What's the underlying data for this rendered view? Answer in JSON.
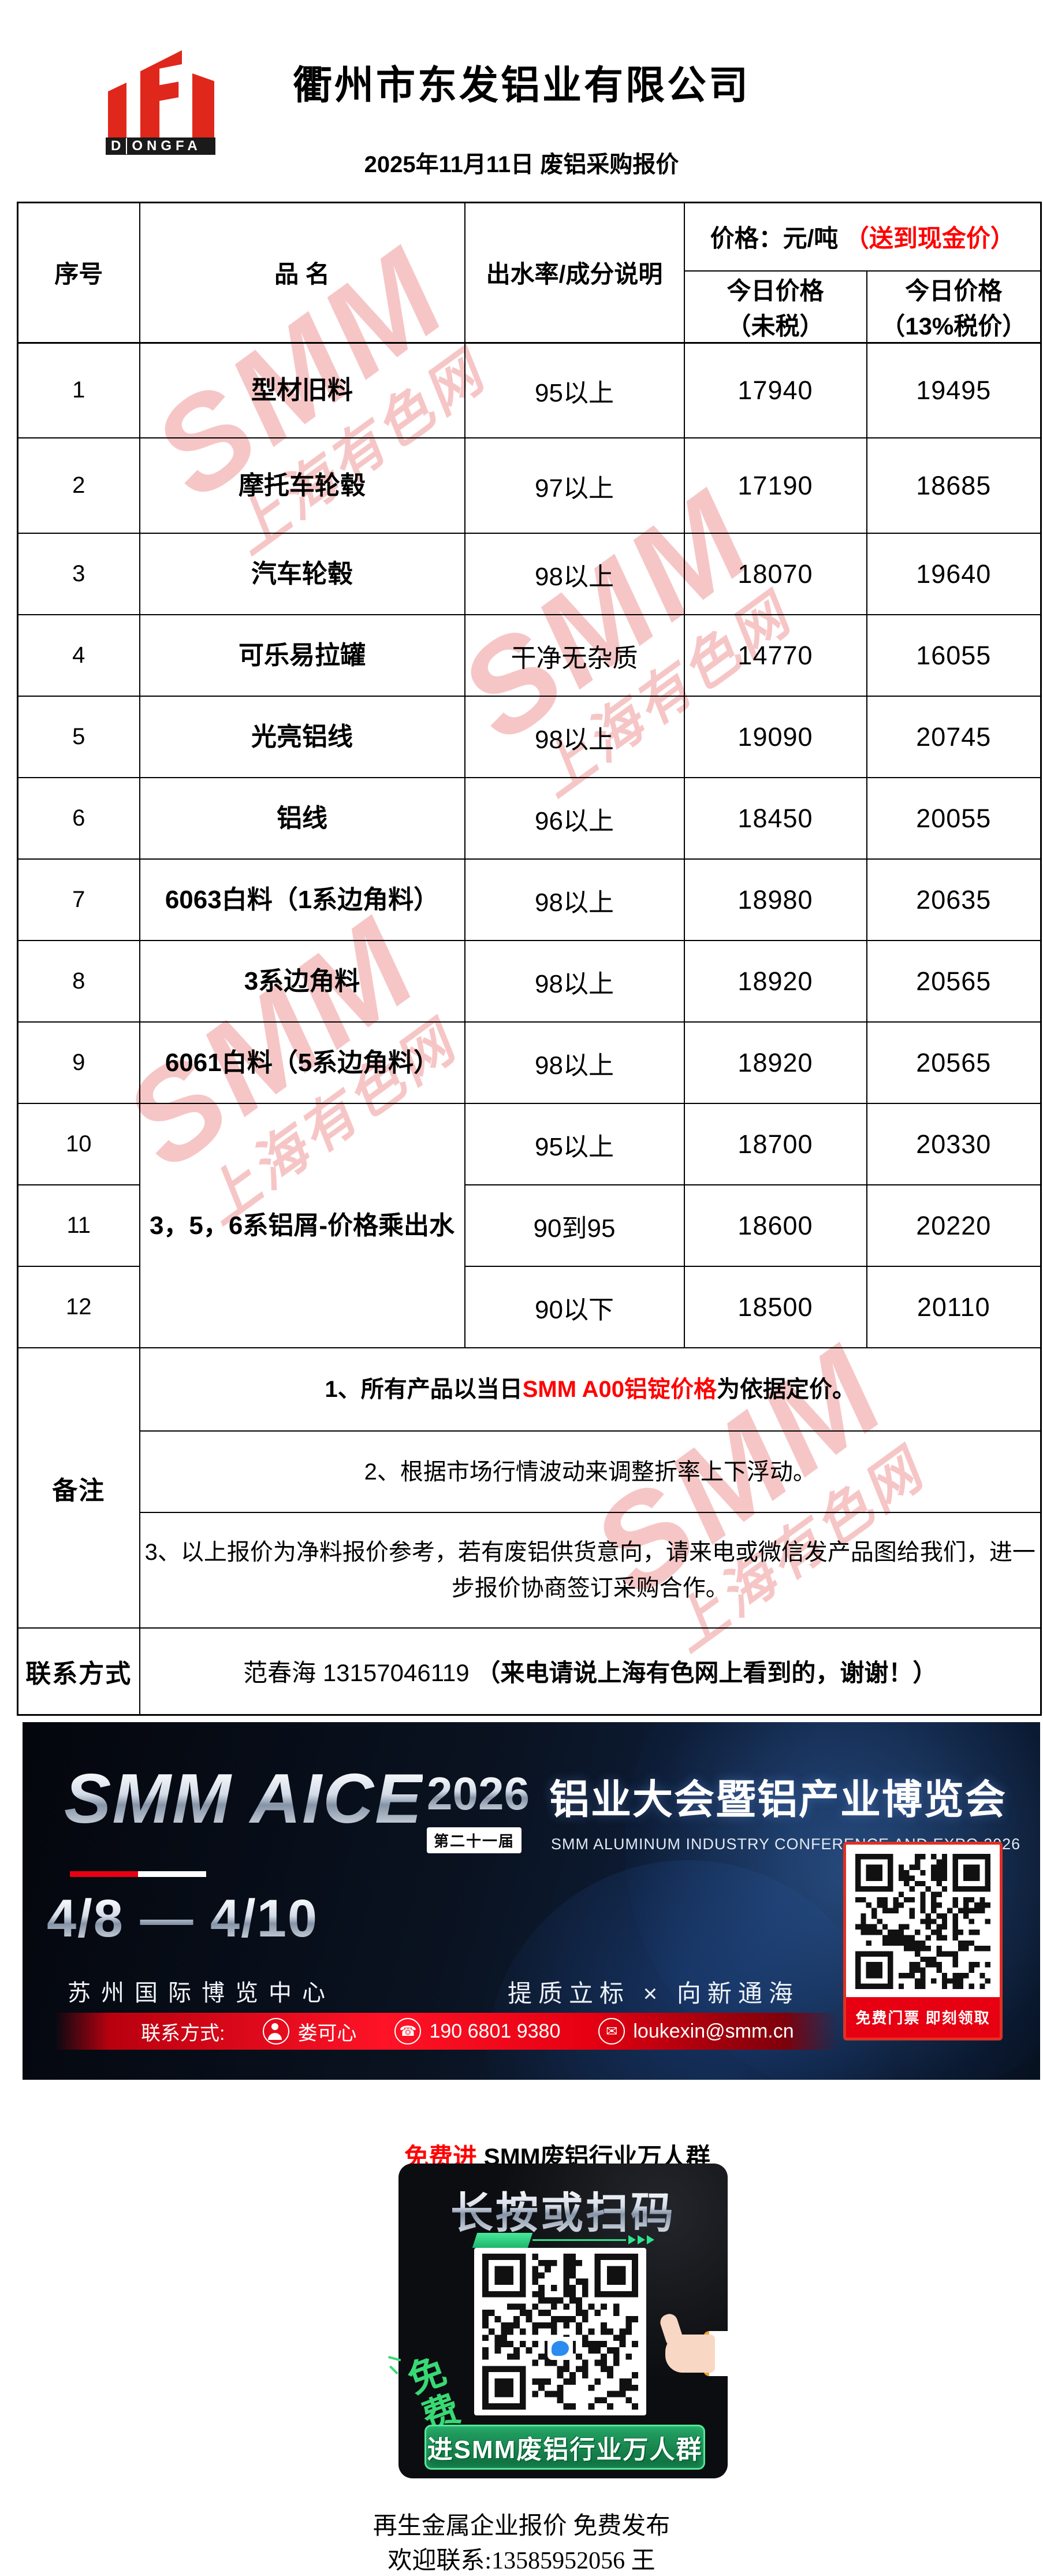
{
  "header": {
    "company": "衢州市东发铝业有限公司",
    "date_line": "2025年11月11日 废铝采购报价",
    "logo": {
      "d": "D",
      "rest": "ONGFA"
    }
  },
  "watermark": {
    "line1": "SMM",
    "line2": "上海有色网"
  },
  "table": {
    "headers": {
      "serial": "序号",
      "name": "品  名",
      "spec": "出水率/成分说明",
      "price_title": "价格：元/吨",
      "price_title_red": "（送到现金价）",
      "today_price": "今日价格",
      "untaxed": "（未税）",
      "taxed": "（13%税价）"
    },
    "rows": [
      {
        "no": "1",
        "name": "型材旧料",
        "spec": "95以上",
        "untaxed": "17940",
        "taxed": "19495"
      },
      {
        "no": "2",
        "name": "摩托车轮毂",
        "spec": "97以上",
        "untaxed": "17190",
        "taxed": "18685"
      },
      {
        "no": "3",
        "name": "汽车轮毂",
        "spec": "98以上",
        "untaxed": "18070",
        "taxed": "19640"
      },
      {
        "no": "4",
        "name": "可乐易拉罐",
        "spec": "干净无杂质",
        "untaxed": "14770",
        "taxed": "16055"
      },
      {
        "no": "5",
        "name": "光亮铝线",
        "spec": "98以上",
        "untaxed": "19090",
        "taxed": "20745"
      },
      {
        "no": "6",
        "name": "铝线",
        "spec": "96以上",
        "untaxed": "18450",
        "taxed": "20055"
      },
      {
        "no": "7",
        "name": "6063白料（1系边角料）",
        "spec": "98以上",
        "untaxed": "18980",
        "taxed": "20635"
      },
      {
        "no": "8",
        "name": "3系边角料",
        "spec": "98以上",
        "untaxed": "18920",
        "taxed": "20565"
      },
      {
        "no": "9",
        "name": "6061白料（5系边角料）",
        "spec": "98以上",
        "untaxed": "18920",
        "taxed": "20565"
      },
      {
        "no": "10",
        "name": "",
        "spec": "95以上",
        "untaxed": "18700",
        "taxed": "20330"
      },
      {
        "no": "11",
        "name": "",
        "spec": "90到95",
        "untaxed": "18600",
        "taxed": "20220"
      },
      {
        "no": "12",
        "name": "",
        "spec": "90以下",
        "untaxed": "18500",
        "taxed": "20110"
      }
    ],
    "merged_name": "3，5，6系铝屑-价格乘出水",
    "remark_label": "备注",
    "remark1_prefix": "1、所有产品以当日",
    "remark1_red": "SMM A00铝锭价格",
    "remark1_suffix": "为依据定价。",
    "remark2": "2、根据市场行情波动来调整折率上下浮动。",
    "remark3": "3、以上报价为净料报价参考，若有废铝供货意向，请来电或微信发产品图给我们，进一步报价协商签订采购合作。",
    "contact_label": "联系方式",
    "contact_value": "范春海 13157046119",
    "contact_value_bold": "（来电请说上海有色网上看到的，谢谢！）"
  },
  "banner": {
    "brand": "SMM AICE",
    "year": "2026",
    "edition": "第二十一届",
    "title_cn": "铝业大会暨铝产业博览会",
    "title_en": "SMM ALUMINUM INDUSTRY CONFERENCE AND EXPO 2026",
    "dates": "4/8 — 4/10",
    "venue": "苏州国际博览中心",
    "slogan": "提质立标 × 向新通海",
    "contact_label": "联系方式:",
    "contact_name": "娄可心",
    "contact_phone": "190 6801 9380",
    "contact_email": "loukexin@smm.cn",
    "ticket_label": "免费门票 即刻领取"
  },
  "qr_section": {
    "title_red": "免费进",
    "title_rest": " SMM废铝行业万人群",
    "card_title": "长按或扫码",
    "badge": "免费",
    "button": "进SMM废铝行业万人群"
  },
  "footer": {
    "line1": "再生金属企业报价 免费发布",
    "line2": "欢迎联系:13585952056 王"
  },
  "colors": {
    "accent_red": "#ff0000",
    "logo_red": "#e0271b",
    "banner_red": "#e60012",
    "green": "#2ee58d",
    "watermark_pink": "#f09898"
  }
}
